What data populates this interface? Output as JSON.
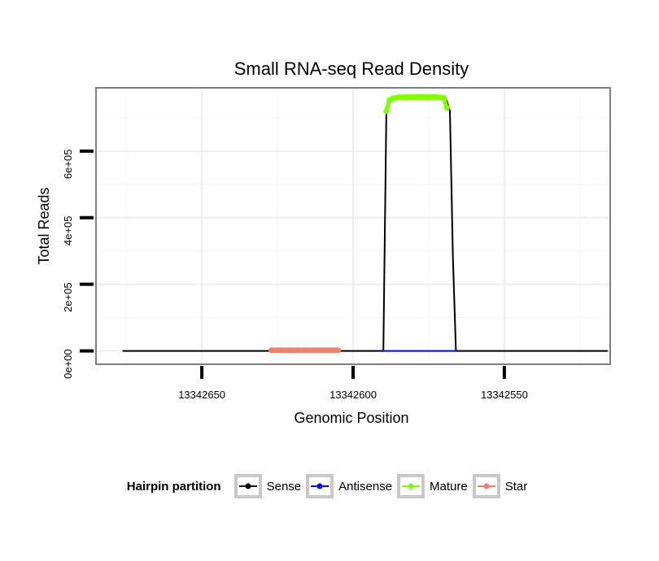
{
  "chart_data": {
    "type": "line",
    "title": "Small RNA-seq Read Density",
    "xlabel": "Genomic Position",
    "ylabel": "Total Reads",
    "x_reversed": true,
    "xlim": [
      13342685,
      13342515
    ],
    "ylim": [
      -40000,
      790000
    ],
    "x_ticks": [
      13342650,
      13342600,
      13342550
    ],
    "x_tick_labels": [
      "13342650",
      "13342600",
      "13342550"
    ],
    "y_ticks": [
      0,
      200000,
      400000,
      600000
    ],
    "y_tick_labels": [
      "0e+00",
      "2e+05",
      "4e+05",
      "6e+05"
    ],
    "grid": true,
    "legend_position": "bottom",
    "legend_title": "Hairpin partition",
    "series": [
      {
        "name": "Sense",
        "color": "#000000",
        "points": [
          [
            13342676,
            0
          ],
          [
            13342590,
            0
          ],
          [
            13342589,
            720000
          ],
          [
            13342588,
            755000
          ],
          [
            13342586,
            762000
          ],
          [
            13342580,
            763000
          ],
          [
            13342575,
            763000
          ],
          [
            13342570,
            762000
          ],
          [
            13342569,
            750000
          ],
          [
            13342568,
            720000
          ],
          [
            13342567,
            280000
          ],
          [
            13342566,
            0
          ],
          [
            13342516,
            0
          ]
        ]
      },
      {
        "name": "Antisense",
        "color": "#0000ff",
        "points": [
          [
            13342590,
            0
          ],
          [
            13342566,
            0
          ]
        ]
      },
      {
        "name": "Mature",
        "color": "#7fff00",
        "points": [
          [
            13342589,
            720000
          ],
          [
            13342588,
            752000
          ],
          [
            13342587,
            758000
          ],
          [
            13342586,
            760000
          ],
          [
            13342585,
            761000
          ],
          [
            13342584,
            762000
          ],
          [
            13342583,
            762000
          ],
          [
            13342582,
            762000
          ],
          [
            13342581,
            762000
          ],
          [
            13342580,
            762000
          ],
          [
            13342579,
            762000
          ],
          [
            13342578,
            762000
          ],
          [
            13342577,
            762000
          ],
          [
            13342576,
            762000
          ],
          [
            13342575,
            762000
          ],
          [
            13342574,
            762000
          ],
          [
            13342573,
            762000
          ],
          [
            13342572,
            762000
          ],
          [
            13342571,
            761000
          ],
          [
            13342570,
            760000
          ],
          [
            13342569,
            730000
          ]
        ]
      },
      {
        "name": "Star",
        "color": "#f08070",
        "points": [
          [
            13342627,
            2000
          ],
          [
            13342626,
            2000
          ],
          [
            13342625,
            2000
          ],
          [
            13342624,
            2000
          ],
          [
            13342623,
            2000
          ],
          [
            13342622,
            2000
          ],
          [
            13342621,
            2000
          ],
          [
            13342620,
            2000
          ],
          [
            13342619,
            2000
          ],
          [
            13342618,
            2000
          ],
          [
            13342617,
            2000
          ],
          [
            13342616,
            2000
          ],
          [
            13342615,
            2000
          ],
          [
            13342614,
            2000
          ],
          [
            13342613,
            2000
          ],
          [
            13342612,
            2000
          ],
          [
            13342611,
            2000
          ],
          [
            13342610,
            2000
          ],
          [
            13342609,
            2000
          ],
          [
            13342608,
            2000
          ],
          [
            13342607,
            2000
          ],
          [
            13342606,
            2000
          ],
          [
            13342605,
            2000
          ]
        ]
      }
    ]
  }
}
